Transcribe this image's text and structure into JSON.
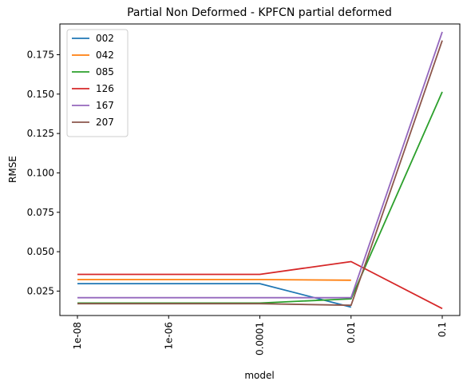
{
  "chart_data": {
    "type": "line",
    "title": "Partial Non Deformed - KPFCN partial deformed",
    "xlabel": "model",
    "ylabel": "RMSE",
    "categories": [
      "1e-08",
      "1e-06",
      "0.0001",
      "0.01",
      "0.1"
    ],
    "ylim": [
      0.0095,
      0.1945
    ],
    "yticks": [
      "0.025",
      "0.050",
      "0.075",
      "0.100",
      "0.125",
      "0.150",
      "0.175"
    ],
    "legend_position": "top-left",
    "grid": false,
    "series": [
      {
        "name": "002",
        "color": "#1f77b4",
        "values": [
          0.0297,
          0.0297,
          0.0297,
          0.0148,
          null
        ]
      },
      {
        "name": "042",
        "color": "#ff7f0e",
        "values": [
          0.0323,
          0.0323,
          0.0323,
          0.0319,
          null
        ]
      },
      {
        "name": "085",
        "color": "#2ca02c",
        "values": [
          0.0174,
          0.0174,
          0.0174,
          0.0201,
          0.1514
        ]
      },
      {
        "name": "126",
        "color": "#d62728",
        "values": [
          0.0356,
          0.0356,
          0.0356,
          0.0437,
          0.0139
        ]
      },
      {
        "name": "167",
        "color": "#9467bd",
        "values": [
          0.0208,
          0.0208,
          0.0208,
          0.0208,
          0.1895
        ]
      },
      {
        "name": "207",
        "color": "#8c564b",
        "values": [
          0.017,
          0.017,
          0.017,
          0.016,
          0.184
        ]
      }
    ]
  }
}
